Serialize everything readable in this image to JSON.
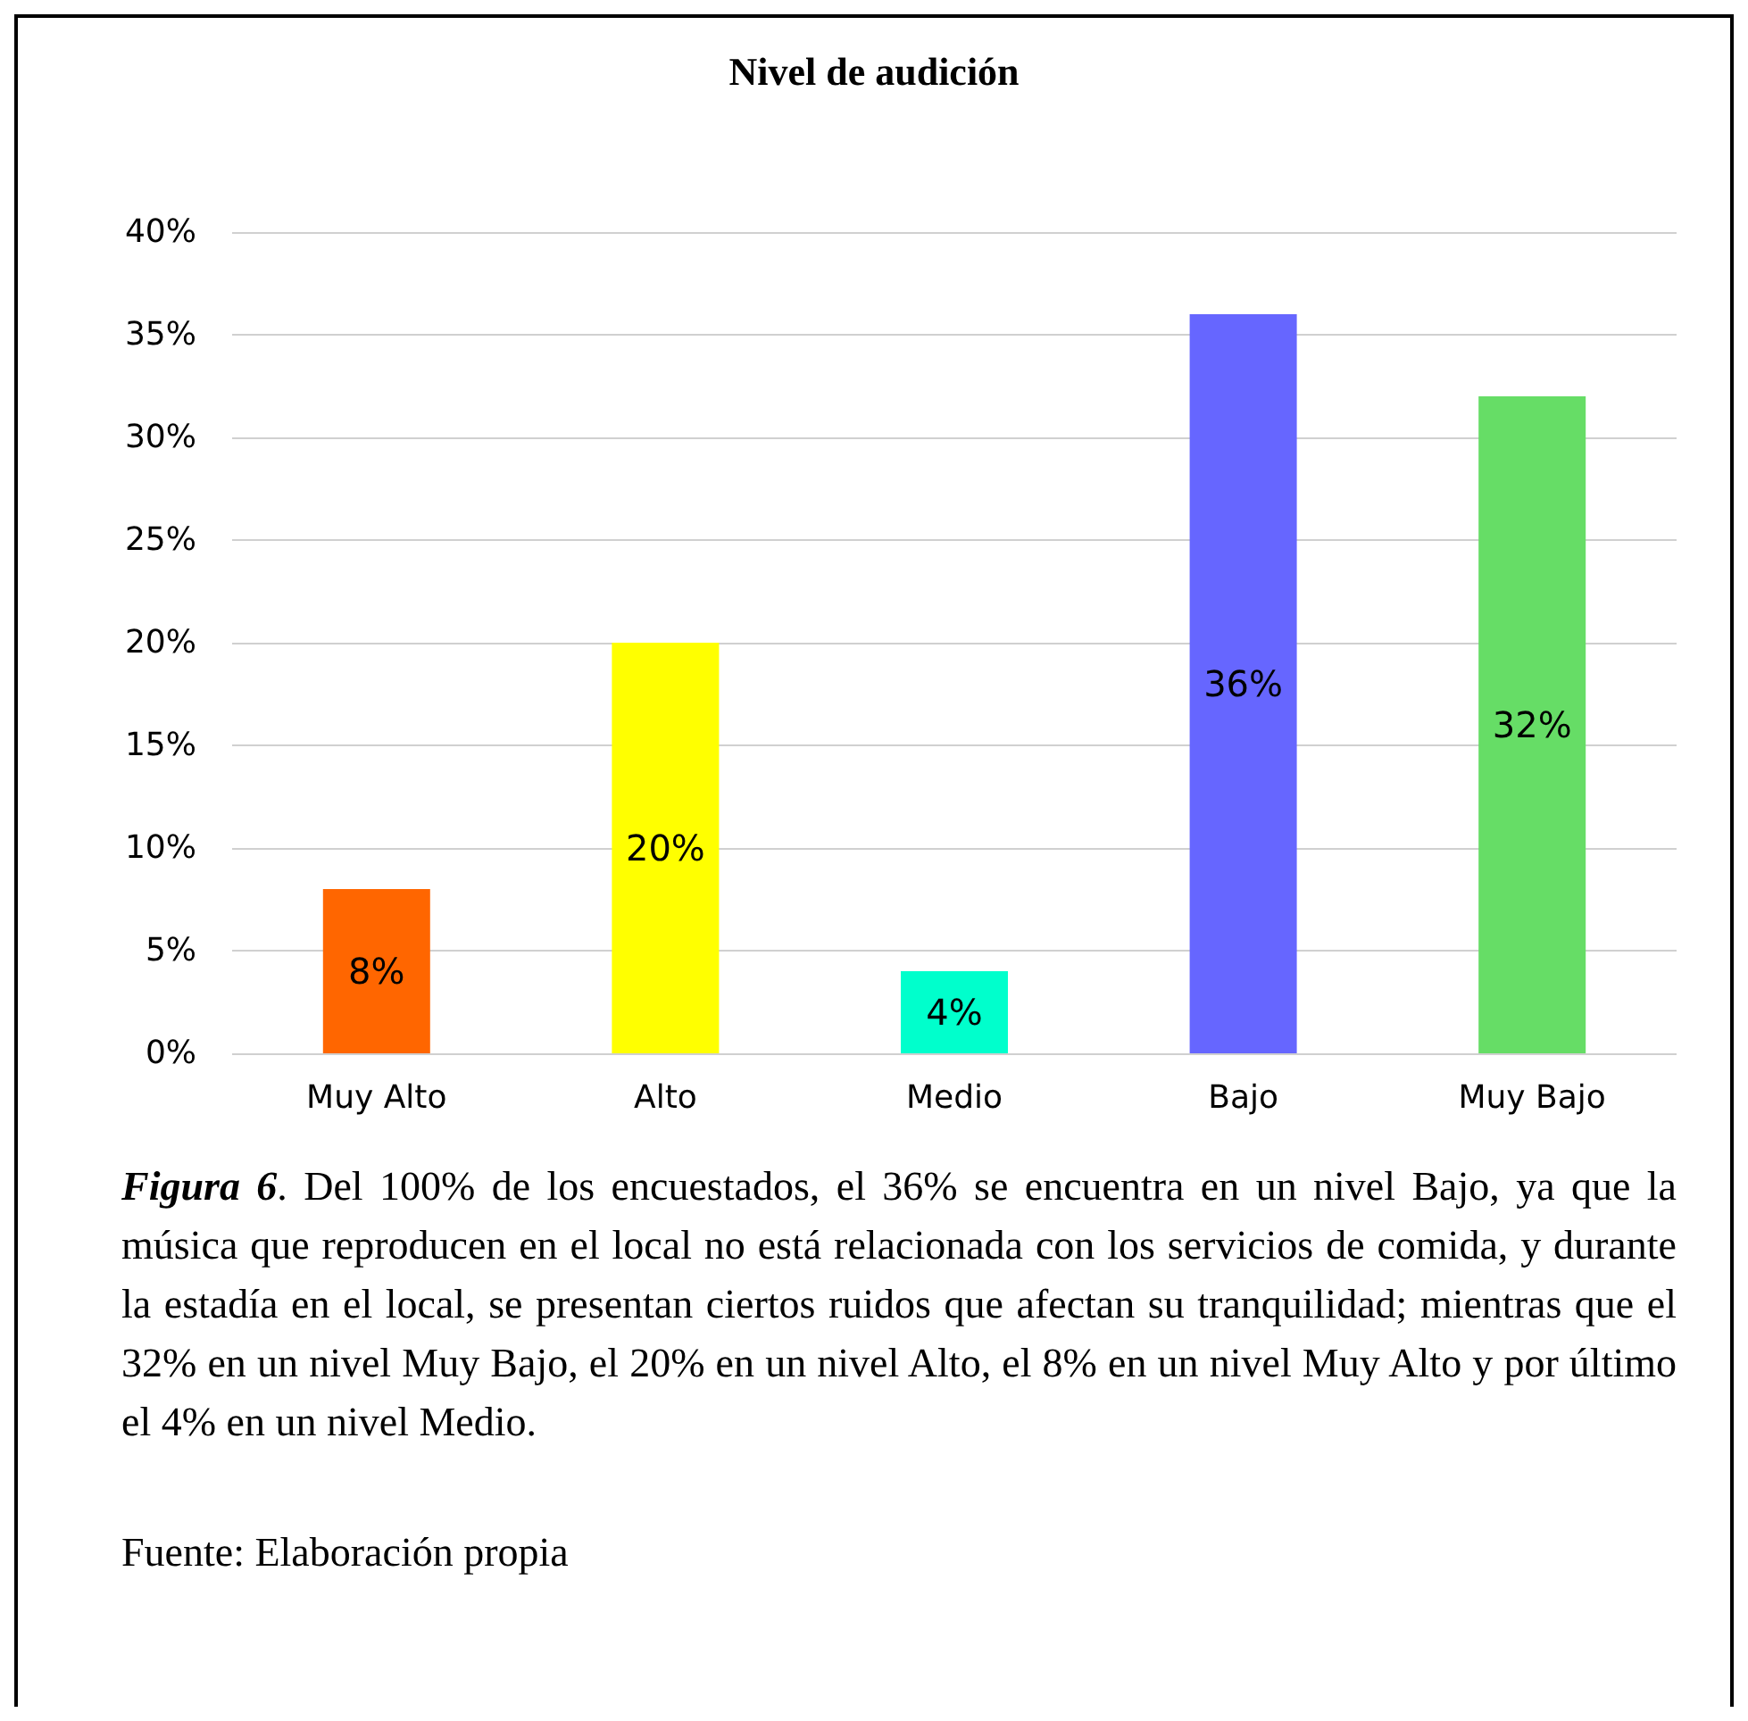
{
  "chart_data": {
    "type": "bar",
    "title": "Nivel de audición",
    "categories": [
      "Muy Alto",
      "Alto",
      "Medio",
      "Bajo",
      "Muy Bajo"
    ],
    "values": [
      8,
      20,
      4,
      36,
      32
    ],
    "colors": [
      "#ff6600",
      "#ffff00",
      "#00ffcc",
      "#6666ff",
      "#66dd66"
    ],
    "value_labels": [
      "8%",
      "20%",
      "4%",
      "36%",
      "32%"
    ],
    "ylim": [
      0,
      40
    ],
    "yticks": [
      {
        "value": 0,
        "label": "0%"
      },
      {
        "value": 5,
        "label": "5%"
      },
      {
        "value": 10,
        "label": "10%"
      },
      {
        "value": 15,
        "label": "15%"
      },
      {
        "value": 20,
        "label": "20%"
      },
      {
        "value": 25,
        "label": "25%"
      },
      {
        "value": 30,
        "label": "30%"
      },
      {
        "value": 35,
        "label": "35%"
      },
      {
        "value": 40,
        "label": "40%"
      }
    ],
    "grid": "y",
    "annotations": [
      "Figura 6. Del 100% de los encuestados, el 36% se encuentra en un nivel Bajo, ya que la música que reproducen en el local no está relacionada con los servicios de comida, y durante la estadía en el local, se presentan ciertos ruidos que afectan su tranquilidad; mientras que el 32% en un nivel Muy Bajo, el 20% en un nivel Alto, el 8% en un nivel Muy Alto y por último el 4% en un nivel Medio.",
      "Fuente: Elaboración propia"
    ]
  }
}
